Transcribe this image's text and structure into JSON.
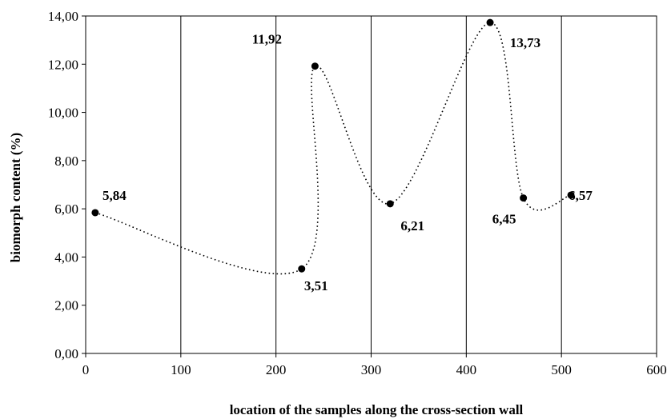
{
  "chart_data": {
    "type": "scatter",
    "title": "",
    "xlabel": "location of the samples along the cross-section wall",
    "ylabel": "biomorph  content (%)",
    "xlim": [
      0,
      600
    ],
    "ylim": [
      0,
      14
    ],
    "x_ticks": [
      "0",
      "100",
      "200",
      "300",
      "400",
      "500",
      "600"
    ],
    "y_ticks": [
      "0,00",
      "2,00",
      "4,00",
      "6,00",
      "8,00",
      "10,00",
      "12,00",
      "14,00"
    ],
    "grid": "vertical",
    "line_style": "dotted smoothed",
    "legend": "none",
    "series": [
      {
        "x": [
          10,
          227,
          241,
          320,
          425,
          460,
          510
        ],
        "y": [
          5.84,
          3.51,
          11.92,
          6.21,
          13.73,
          6.45,
          6.57
        ],
        "labels": [
          "5,84",
          "3,51",
          "11,92",
          "6,21",
          "13,73",
          "6,45",
          "6,57"
        ]
      }
    ]
  }
}
